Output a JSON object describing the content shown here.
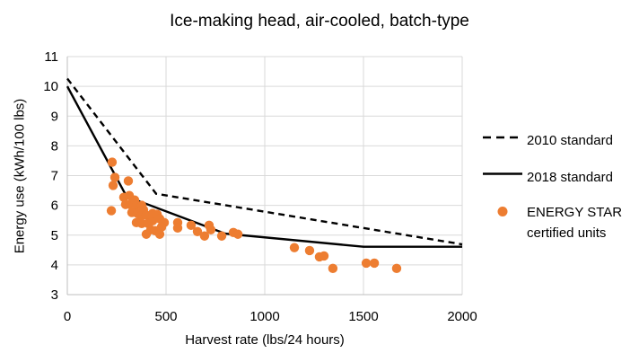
{
  "chart_data": {
    "type": "scatter",
    "title": "Ice-making head, air-cooled, batch-type",
    "xlabel": "Harvest rate (lbs/24 hours)",
    "ylabel": "Energy use (kWh/100 lbs)",
    "xlim": [
      0,
      2000
    ],
    "ylim": [
      3,
      11
    ],
    "xticks": [
      0,
      500,
      1000,
      1500,
      2000
    ],
    "yticks": [
      3,
      4,
      5,
      6,
      7,
      8,
      9,
      10,
      11
    ],
    "grid": true,
    "colors": {
      "scatter": "#ED7D31",
      "line": "#000000",
      "grid": "#D9D9D9",
      "axis": "#BFBFBF",
      "text": "#000000"
    },
    "series": [
      {
        "name": "2010 standard",
        "type": "line",
        "style": "dashed",
        "color": "#000000",
        "points": [
          [
            0,
            10.26
          ],
          [
            450,
            6.39
          ],
          [
            2000,
            4.69
          ]
        ]
      },
      {
        "name": "2018 standard",
        "type": "line",
        "style": "solid",
        "color": "#000000",
        "points": [
          [
            0,
            10.0
          ],
          [
            300,
            6.3
          ],
          [
            800,
            5.05
          ],
          [
            1500,
            4.61
          ],
          [
            2000,
            4.61
          ]
        ]
      },
      {
        "name": "ENERGY STAR certified units",
        "type": "scatter",
        "color": "#ED7D31",
        "points": [
          [
            227,
            7.45
          ],
          [
            241,
            6.94
          ],
          [
            232,
            6.67
          ],
          [
            309,
            6.82
          ],
          [
            286,
            6.27
          ],
          [
            314,
            6.33
          ],
          [
            223,
            5.82
          ],
          [
            295,
            6.03
          ],
          [
            318,
            6.03
          ],
          [
            341,
            6.18
          ],
          [
            350,
            6.0
          ],
          [
            327,
            5.76
          ],
          [
            355,
            5.73
          ],
          [
            377,
            6.0
          ],
          [
            386,
            5.85
          ],
          [
            373,
            5.64
          ],
          [
            400,
            5.67
          ],
          [
            350,
            5.42
          ],
          [
            377,
            5.39
          ],
          [
            409,
            5.39
          ],
          [
            432,
            5.48
          ],
          [
            432,
            5.73
          ],
          [
            455,
            5.7
          ],
          [
            468,
            5.55
          ],
          [
            491,
            5.42
          ],
          [
            477,
            5.27
          ],
          [
            423,
            5.18
          ],
          [
            445,
            5.15
          ],
          [
            400,
            5.03
          ],
          [
            468,
            5.03
          ],
          [
            559,
            5.42
          ],
          [
            559,
            5.24
          ],
          [
            627,
            5.33
          ],
          [
            659,
            5.12
          ],
          [
            695,
            4.97
          ],
          [
            718,
            5.33
          ],
          [
            727,
            5.18
          ],
          [
            782,
            4.97
          ],
          [
            841,
            5.09
          ],
          [
            864,
            5.03
          ],
          [
            1150,
            4.58
          ],
          [
            1227,
            4.48
          ],
          [
            1277,
            4.27
          ],
          [
            1300,
            4.3
          ],
          [
            1345,
            3.88
          ],
          [
            1514,
            4.06
          ],
          [
            1555,
            4.06
          ],
          [
            1668,
            3.88
          ]
        ]
      }
    ],
    "legend": {
      "position": "right",
      "entries": [
        {
          "label": "2010 standard",
          "marker": "dashed-line"
        },
        {
          "label": "2018 standard",
          "marker": "solid-line"
        },
        {
          "label": "ENERGY STAR",
          "label2": "certified units",
          "marker": "orange-dot"
        }
      ]
    }
  }
}
